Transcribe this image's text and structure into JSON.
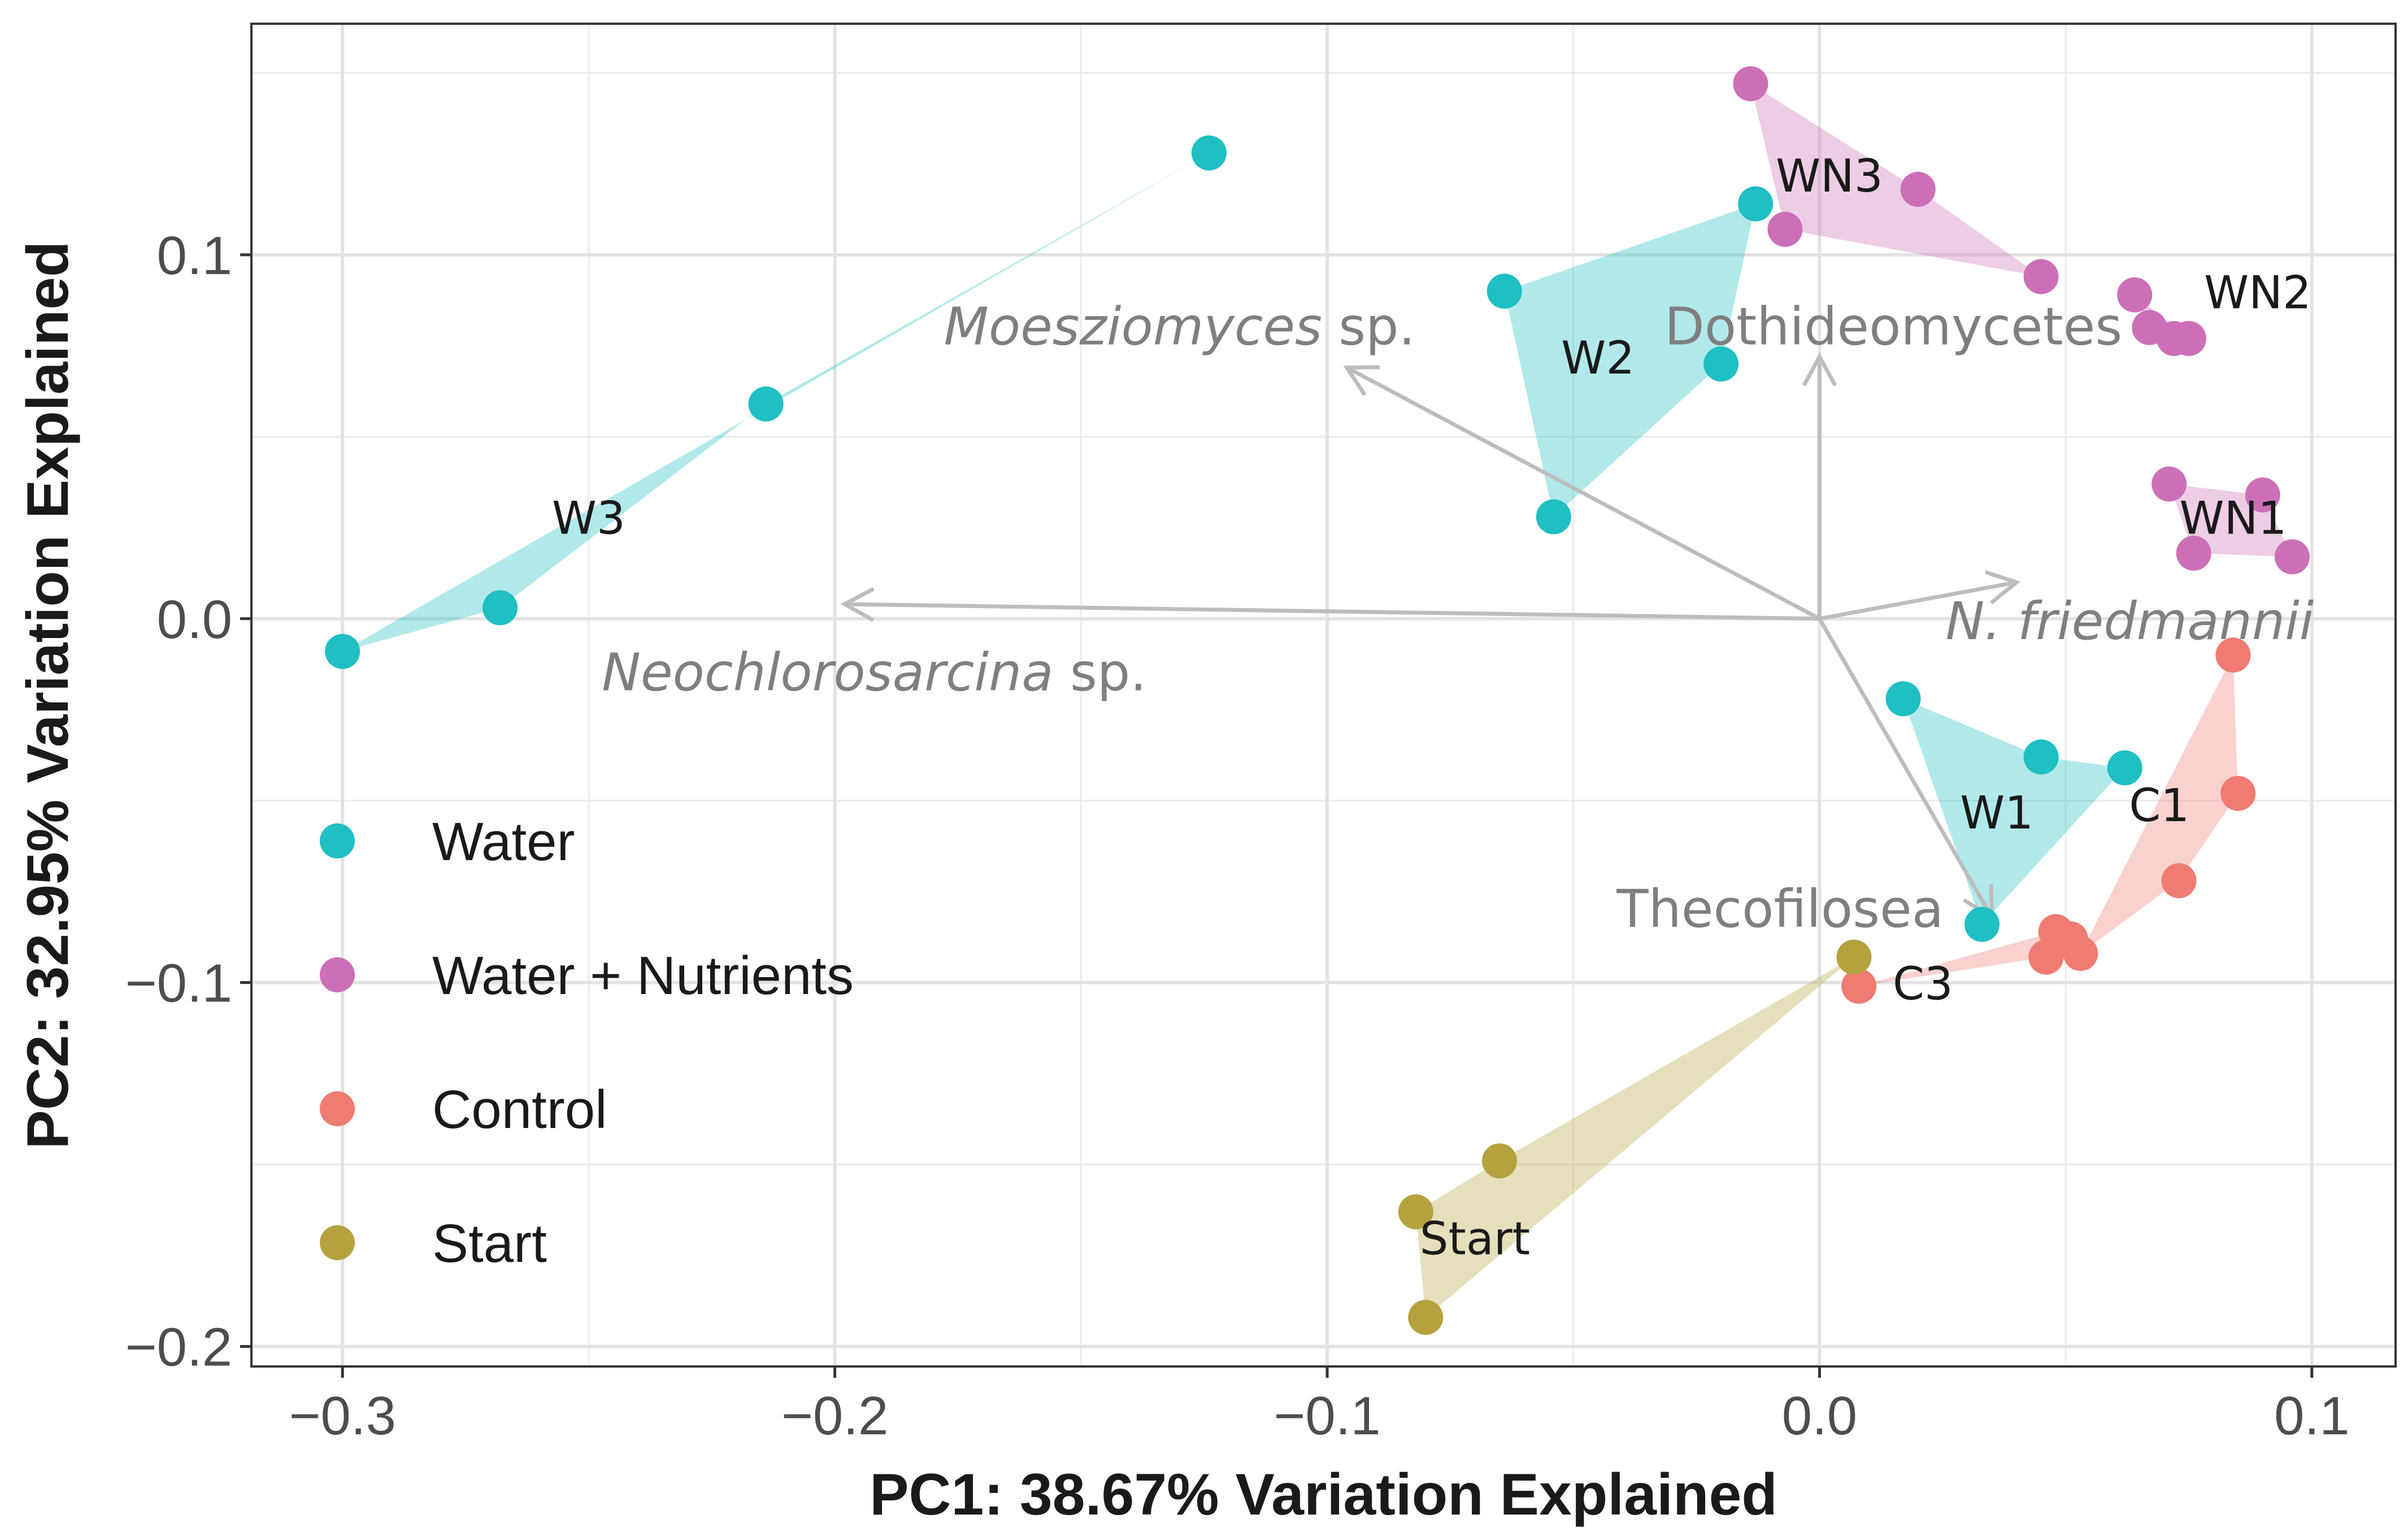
{
  "chart_data": {
    "type": "scatter",
    "xlabel": "PC1: 38.67% Variation Explained",
    "ylabel": "PC2: 32.95% Variation Explained",
    "xlim": [
      -0.3185,
      0.117
    ],
    "ylim": [
      -0.2055,
      0.1635
    ],
    "x_ticks": [
      -0.3,
      -0.2,
      -0.1,
      0.0,
      0.1
    ],
    "x_tick_labels": [
      "−0.3",
      "−0.2",
      "−0.1",
      "0.0",
      "0.1"
    ],
    "y_ticks": [
      -0.2,
      -0.1,
      0.0,
      0.1
    ],
    "y_tick_labels": [
      "−0.2",
      "−0.1",
      "0.0",
      "0.1"
    ],
    "grid": true,
    "legend_position": "bottom-left",
    "series": [
      {
        "name": "Water",
        "color": "#1fbfc3",
        "points": [
          [
            -0.3,
            -0.009
          ],
          [
            -0.268,
            0.003
          ],
          [
            -0.214,
            0.059
          ],
          [
            -0.124,
            0.128
          ],
          [
            -0.064,
            0.09
          ],
          [
            -0.054,
            0.028
          ],
          [
            -0.02,
            0.07
          ],
          [
            -0.013,
            0.114
          ],
          [
            0.017,
            -0.022
          ],
          [
            0.045,
            -0.038
          ],
          [
            0.062,
            -0.041
          ],
          [
            0.033,
            -0.084
          ]
        ],
        "groups": [
          {
            "label": "W3",
            "label_pos": [
              -0.25,
              0.028
            ],
            "hull": [
              [
                -0.3,
                -0.009
              ],
              [
                -0.124,
                0.128
              ],
              [
                -0.214,
                0.059
              ],
              [
                -0.268,
                0.003
              ]
            ]
          },
          {
            "label": "W2",
            "label_pos": [
              -0.045,
              0.072
            ],
            "hull": [
              [
                -0.064,
                0.09
              ],
              [
                -0.013,
                0.114
              ],
              [
                -0.02,
                0.07
              ],
              [
                -0.054,
                0.028
              ]
            ]
          },
          {
            "label": "W1",
            "label_pos": [
              0.036,
              -0.053
            ],
            "hull": [
              [
                0.017,
                -0.022
              ],
              [
                0.045,
                -0.038
              ],
              [
                0.062,
                -0.041
              ],
              [
                0.033,
                -0.084
              ]
            ]
          }
        ]
      },
      {
        "name": "Water + Nutrients",
        "color": "#cc6fb8",
        "points": [
          [
            -0.014,
            0.147
          ],
          [
            -0.007,
            0.107
          ],
          [
            0.02,
            0.118
          ],
          [
            0.045,
            0.094
          ],
          [
            0.064,
            0.089
          ],
          [
            0.067,
            0.08
          ],
          [
            0.072,
            0.077
          ],
          [
            0.075,
            0.077
          ],
          [
            0.071,
            0.037
          ],
          [
            0.09,
            0.034
          ],
          [
            0.096,
            0.017
          ],
          [
            0.076,
            0.018
          ]
        ],
        "groups": [
          {
            "label": "WN3",
            "label_pos": [
              0.002,
              0.122
            ],
            "hull": [
              [
                -0.014,
                0.147
              ],
              [
                0.02,
                0.118
              ],
              [
                0.045,
                0.094
              ],
              [
                -0.007,
                0.107
              ]
            ]
          },
          {
            "label": "WN2",
            "label_pos": [
              0.089,
              0.09
            ],
            "hull": [
              [
                0.064,
                0.089
              ],
              [
                0.067,
                0.08
              ],
              [
                0.072,
                0.077
              ],
              [
                0.075,
                0.077
              ]
            ]
          },
          {
            "label": "WN1",
            "label_pos": [
              0.084,
              0.028
            ],
            "hull": [
              [
                0.071,
                0.037
              ],
              [
                0.09,
                0.034
              ],
              [
                0.096,
                0.017
              ],
              [
                0.076,
                0.018
              ]
            ]
          }
        ]
      },
      {
        "name": "Control",
        "color": "#f07b72",
        "points": [
          [
            0.084,
            -0.01
          ],
          [
            0.085,
            -0.048
          ],
          [
            0.073,
            -0.072
          ],
          [
            0.051,
            -0.088
          ],
          [
            0.046,
            -0.093
          ],
          [
            0.053,
            -0.092
          ],
          [
            0.048,
            -0.086
          ],
          [
            0.008,
            -0.101
          ]
        ],
        "groups": [
          {
            "label": "C1",
            "label_pos": [
              0.069,
              -0.051
            ],
            "hull": [
              [
                0.084,
                -0.01
              ],
              [
                0.085,
                -0.048
              ],
              [
                0.073,
                -0.072
              ],
              [
                0.053,
                -0.092
              ]
            ]
          },
          {
            "label": "C3",
            "label_pos": [
              0.021,
              -0.1
            ],
            "hull": [
              [
                0.008,
                -0.101
              ],
              [
                0.048,
                -0.086
              ],
              [
                0.053,
                -0.092
              ],
              [
                0.046,
                -0.093
              ]
            ]
          }
        ]
      },
      {
        "name": "Start",
        "color": "#b5a23f",
        "points": [
          [
            0.007,
            -0.093
          ],
          [
            -0.065,
            -0.149
          ],
          [
            -0.082,
            -0.163
          ],
          [
            -0.08,
            -0.192
          ]
        ],
        "groups": [
          {
            "label": "Start",
            "label_pos": [
              -0.07,
              -0.17
            ],
            "hull": [
              [
                0.007,
                -0.093
              ],
              [
                -0.065,
                -0.149
              ],
              [
                -0.082,
                -0.163
              ],
              [
                -0.08,
                -0.192
              ]
            ]
          }
        ]
      }
    ],
    "arrows": [
      {
        "label": "Moesziomyces sp.",
        "italic": "Moesziomyces",
        "rest": " sp.",
        "to": [
          -0.096,
          0.069
        ],
        "label_pos": [
          -0.13,
          0.08
        ],
        "anchor": "middle"
      },
      {
        "label": "Dothideomycetes",
        "italic": "",
        "rest": "Dothideomycetes",
        "to": [
          0.0,
          0.072
        ],
        "label_pos": [
          0.015,
          0.08
        ],
        "anchor": "middle"
      },
      {
        "label": "Neochlorosarcina sp.",
        "italic": "Neochlorosarcina",
        "rest": " sp.",
        "to": [
          -0.198,
          0.004
        ],
        "label_pos": [
          -0.192,
          -0.015
        ],
        "anchor": "middle"
      },
      {
        "label": "N. friedmannii",
        "italic": "N. friedmannii",
        "rest": "",
        "to": [
          0.04,
          0.01
        ],
        "label_pos": [
          0.063,
          -0.001
        ],
        "anchor": "middle"
      },
      {
        "label": "Thecofilosea",
        "italic": "",
        "rest": "Thecofilosea",
        "to": [
          0.035,
          -0.082
        ],
        "label_pos": [
          -0.008,
          -0.08
        ],
        "anchor": "middle"
      }
    ]
  }
}
